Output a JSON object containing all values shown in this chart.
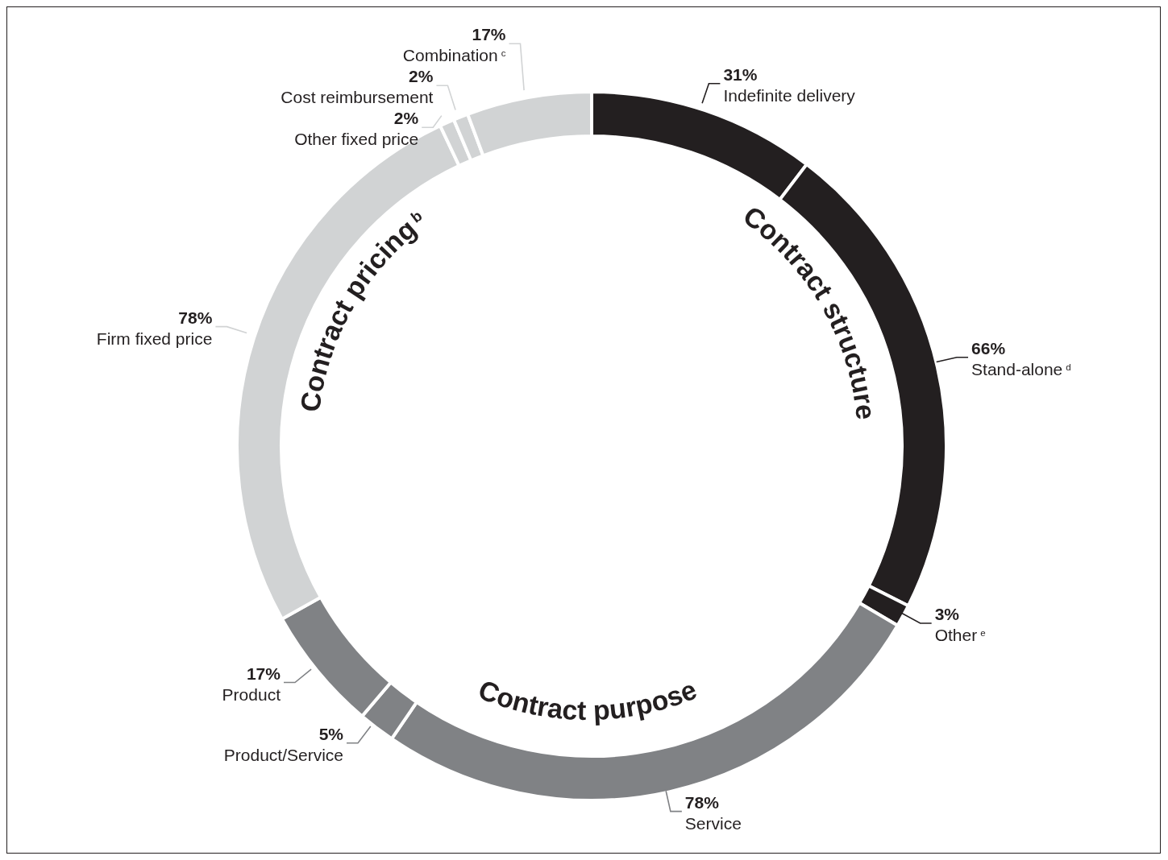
{
  "chart_data": {
    "type": "donut",
    "categories": [
      "Indefinite delivery",
      "Stand-alone$^{d}$",
      "Other$^{e}$",
      "Service",
      "Product/Service",
      "Product",
      "Firm fixed price",
      "Other fixed price",
      "Cost reimbursement",
      "Combination$^{c}$"
    ],
    "values": [
      31,
      66,
      3,
      78,
      5,
      17,
      78,
      2,
      2,
      17
    ],
    "value_labels": [
      "31%",
      "66%",
      "3%",
      "78%",
      "5%",
      "17%",
      "78%",
      "2%",
      "2%",
      "17%"
    ],
    "colors": [
      "#231f20",
      "#231f20",
      "#231f20",
      "#808285",
      "#808285",
      "#808285",
      "#d1d3d4",
      "#d1d3d4",
      "#d1d3d4",
      "#d1d3d4"
    ],
    "annotations": [
      "Contract structure",
      "Contract purpose",
      "Contract pricing$^{b}$"
    ]
  }
}
